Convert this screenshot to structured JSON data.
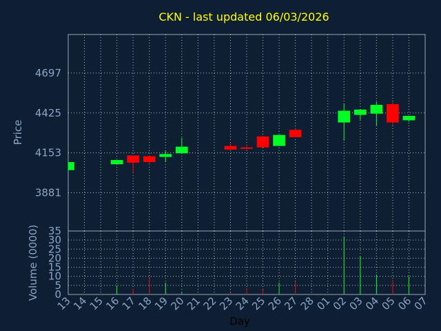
{
  "chart_data": {
    "type": "candlestick",
    "title": "CKN - last updated 06/03/2026",
    "xlabel": "Day",
    "price_panel": {
      "ylabel": "Price",
      "yticks": [
        3881,
        4153,
        4425,
        4697
      ],
      "ylim": [
        3620,
        4960
      ],
      "grid": true
    },
    "volume_panel": {
      "ylabel": "Volume (0000)",
      "yticks": [
        0,
        5,
        10,
        15,
        20,
        25,
        30,
        35
      ],
      "ylim": [
        0,
        35
      ],
      "grid": true
    },
    "x_categories": [
      "13",
      "14",
      "15",
      "16",
      "17",
      "18",
      "19",
      "20",
      "21",
      "22",
      "23",
      "24",
      "25",
      "26",
      "27",
      "28",
      "01",
      "02",
      "03",
      "04",
      "05",
      "06",
      "07"
    ],
    "candles": [
      {
        "day": "13",
        "open": 4035,
        "close": 4090,
        "high": 4095,
        "low": 4030,
        "volume": 0
      },
      {
        "day": "16",
        "open": 4075,
        "close": 4104,
        "high": 4104,
        "low": 4075,
        "volume": 5
      },
      {
        "day": "17",
        "open": 4135,
        "close": 4086,
        "high": 4135,
        "low": 4018,
        "volume": 3
      },
      {
        "day": "18",
        "open": 4130,
        "close": 4090,
        "high": 4135,
        "low": 4070,
        "volume": 10
      },
      {
        "day": "19",
        "open": 4125,
        "close": 4145,
        "high": 4170,
        "low": 4090,
        "volume": 6.5
      },
      {
        "day": "20",
        "open": 4150,
        "close": 4195,
        "high": 4255,
        "low": 4150,
        "volume": 1
      },
      {
        "day": "23",
        "open": 4200,
        "close": 4175,
        "high": 4220,
        "low": 4175,
        "volume": 1
      },
      {
        "day": "24",
        "open": 4190,
        "close": 4186,
        "high": 4212,
        "low": 4175,
        "volume": 3.5
      },
      {
        "day": "25",
        "open": 4265,
        "close": 4190,
        "high": 4265,
        "low": 4190,
        "volume": 2.5
      },
      {
        "day": "26",
        "open": 4200,
        "close": 4275,
        "high": 4275,
        "low": 4200,
        "volume": 6.5
      },
      {
        "day": "27",
        "open": 4310,
        "close": 4260,
        "high": 4325,
        "low": 4260,
        "volume": 7
      },
      {
        "day": "02",
        "open": 4360,
        "close": 4440,
        "high": 4490,
        "low": 4235,
        "volume": 32
      },
      {
        "day": "03",
        "open": 4412,
        "close": 4448,
        "high": 4448,
        "low": 4378,
        "volume": 21
      },
      {
        "day": "04",
        "open": 4420,
        "close": 4480,
        "high": 4500,
        "low": 4340,
        "volume": 11
      },
      {
        "day": "05",
        "open": 4485,
        "close": 4360,
        "high": 4500,
        "low": 4342,
        "volume": 8
      },
      {
        "day": "06",
        "open": 4375,
        "close": 4405,
        "high": 4405,
        "low": 4365,
        "volume": 10
      }
    ],
    "colors": {
      "up": "#00ff22",
      "down": "#ff0000",
      "background": "#0f1f33",
      "axis_text": "#8aa4c8",
      "title": "#ffff00",
      "grid": "#ffffff"
    }
  }
}
